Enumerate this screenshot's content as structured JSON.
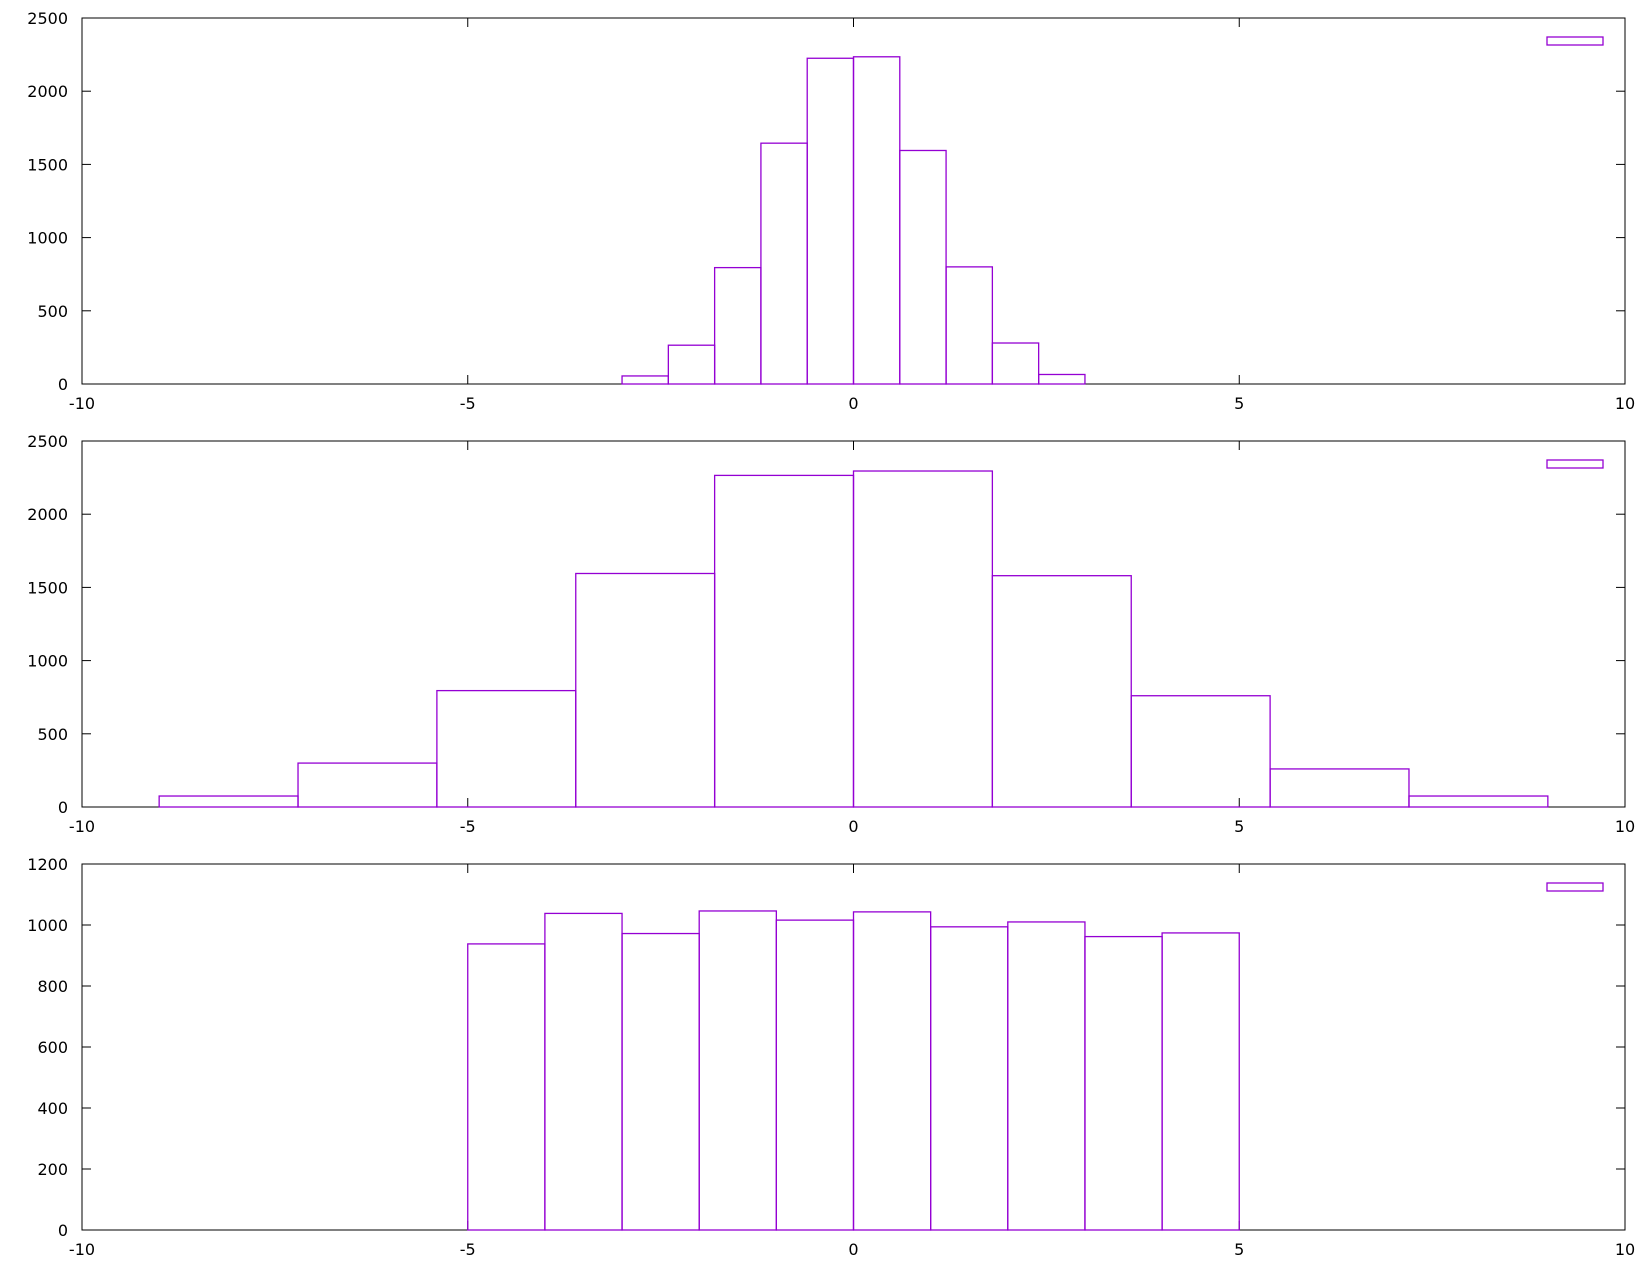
{
  "colors": {
    "series": "#9400d3",
    "axis": "#000000"
  },
  "chart_data": [
    {
      "type": "bar",
      "variant": "histogram-steps",
      "xlim": [
        -10,
        10
      ],
      "ylim": [
        0,
        2500
      ],
      "xticks": [
        -10,
        -5,
        0,
        5,
        10
      ],
      "yticks": [
        0,
        500,
        1000,
        1500,
        2000,
        2500
      ],
      "legend": "top-right",
      "grid": false,
      "bins": [
        {
          "x0": -3.0,
          "x1": -2.4,
          "value": 55
        },
        {
          "x0": -2.4,
          "x1": -1.8,
          "value": 265
        },
        {
          "x0": -1.8,
          "x1": -1.2,
          "value": 795
        },
        {
          "x0": -1.2,
          "x1": -0.6,
          "value": 1645
        },
        {
          "x0": -0.6,
          "x1": 0.0,
          "value": 2225
        },
        {
          "x0": 0.0,
          "x1": 0.6,
          "value": 2235
        },
        {
          "x0": 0.6,
          "x1": 1.2,
          "value": 1595
        },
        {
          "x0": 1.2,
          "x1": 1.8,
          "value": 800
        },
        {
          "x0": 1.8,
          "x1": 2.4,
          "value": 280
        },
        {
          "x0": 2.4,
          "x1": 3.0,
          "value": 65
        }
      ]
    },
    {
      "type": "bar",
      "variant": "histogram-steps",
      "xlim": [
        -10,
        10
      ],
      "ylim": [
        0,
        2500
      ],
      "xticks": [
        -10,
        -5,
        0,
        5,
        10
      ],
      "yticks": [
        0,
        500,
        1000,
        1500,
        2000,
        2500
      ],
      "legend": "top-right",
      "grid": false,
      "bins": [
        {
          "x0": -9.0,
          "x1": -7.2,
          "value": 75
        },
        {
          "x0": -7.2,
          "x1": -5.4,
          "value": 300
        },
        {
          "x0": -5.4,
          "x1": -3.6,
          "value": 795
        },
        {
          "x0": -3.6,
          "x1": -1.8,
          "value": 1595
        },
        {
          "x0": -1.8,
          "x1": 0.0,
          "value": 2265
        },
        {
          "x0": 0.0,
          "x1": 1.8,
          "value": 2295
        },
        {
          "x0": 1.8,
          "x1": 3.6,
          "value": 1580
        },
        {
          "x0": 3.6,
          "x1": 5.4,
          "value": 760
        },
        {
          "x0": 5.4,
          "x1": 7.2,
          "value": 260
        },
        {
          "x0": 7.2,
          "x1": 9.0,
          "value": 75
        }
      ]
    },
    {
      "type": "bar",
      "variant": "histogram-steps",
      "xlim": [
        -10,
        10
      ],
      "ylim": [
        0,
        1200
      ],
      "xticks": [
        -10,
        -5,
        0,
        5,
        10
      ],
      "yticks": [
        0,
        200,
        400,
        600,
        800,
        1000,
        1200
      ],
      "legend": "top-right",
      "grid": false,
      "bins": [
        {
          "x0": -5,
          "x1": -4,
          "value": 938
        },
        {
          "x0": -4,
          "x1": -3,
          "value": 1038
        },
        {
          "x0": -3,
          "x1": -2,
          "value": 972
        },
        {
          "x0": -2,
          "x1": -1,
          "value": 1046
        },
        {
          "x0": -1,
          "x1": 0,
          "value": 1016
        },
        {
          "x0": 0,
          "x1": 1,
          "value": 1043
        },
        {
          "x0": 1,
          "x1": 2,
          "value": 994
        },
        {
          "x0": 2,
          "x1": 3,
          "value": 1010
        },
        {
          "x0": 3,
          "x1": 4,
          "value": 962
        },
        {
          "x0": 4,
          "x1": 5,
          "value": 974
        }
      ]
    }
  ]
}
